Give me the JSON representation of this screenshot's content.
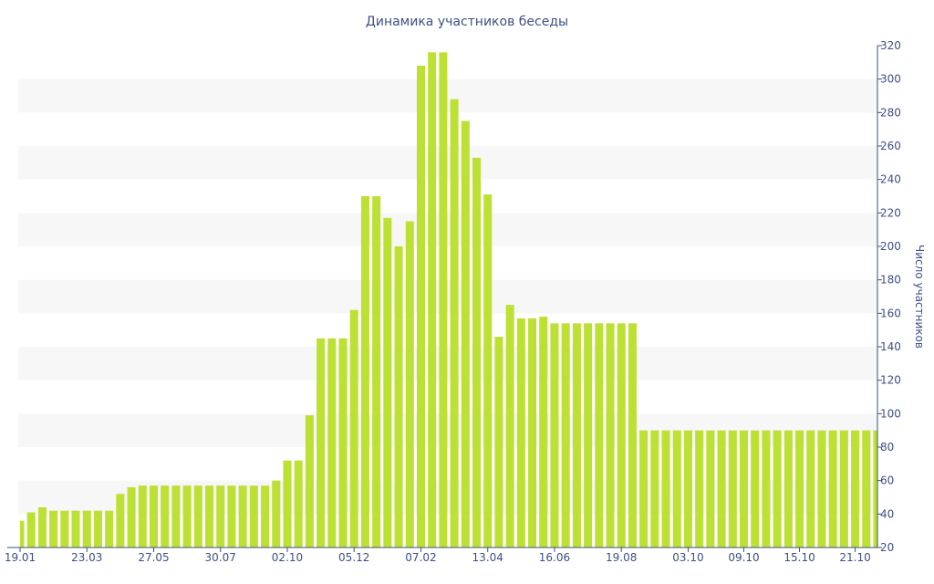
{
  "chart_data": {
    "type": "bar",
    "title": "Динамика участников беседы",
    "ylabel": "Число участников",
    "xlabel": "",
    "ylim": [
      20,
      320
    ],
    "yticks": [
      20,
      40,
      60,
      80,
      100,
      120,
      140,
      160,
      180,
      200,
      220,
      240,
      260,
      280,
      300,
      320
    ],
    "y_axis_position": "right",
    "grid": "alternating horizontal bands",
    "bar_color": "#bde034",
    "axis_color": "#3d4f86",
    "band_color": "#f7f7f7",
    "x_tick_labels": [
      {
        "index": 0,
        "label": "19.01"
      },
      {
        "index": 6,
        "label": "23.03"
      },
      {
        "index": 12,
        "label": "27.05"
      },
      {
        "index": 18,
        "label": "30.07"
      },
      {
        "index": 24,
        "label": "02.10"
      },
      {
        "index": 30,
        "label": "05.12"
      },
      {
        "index": 36,
        "label": "07.02"
      },
      {
        "index": 42,
        "label": "13.04"
      },
      {
        "index": 48,
        "label": "16.06"
      },
      {
        "index": 54,
        "label": "19.08"
      },
      {
        "index": 60,
        "label": "03.10"
      },
      {
        "index": 65,
        "label": "09.10"
      },
      {
        "index": 70,
        "label": "15.10"
      },
      {
        "index": 75,
        "label": "21.10"
      }
    ],
    "values": [
      36,
      41,
      44,
      42,
      42,
      42,
      42,
      42,
      42,
      52,
      56,
      57,
      57,
      57,
      57,
      57,
      57,
      57,
      57,
      57,
      57,
      57,
      57,
      60,
      72,
      72,
      99,
      145,
      145,
      145,
      162,
      230,
      230,
      217,
      200,
      215,
      308,
      316,
      316,
      288,
      275,
      253,
      231,
      146,
      165,
      157,
      157,
      158,
      154,
      154,
      154,
      154,
      154,
      154,
      154,
      154,
      90,
      90,
      90,
      90,
      90,
      90,
      90,
      90,
      90,
      90,
      90,
      90,
      90,
      90,
      90,
      90,
      90,
      90,
      90,
      90,
      90,
      90
    ]
  }
}
